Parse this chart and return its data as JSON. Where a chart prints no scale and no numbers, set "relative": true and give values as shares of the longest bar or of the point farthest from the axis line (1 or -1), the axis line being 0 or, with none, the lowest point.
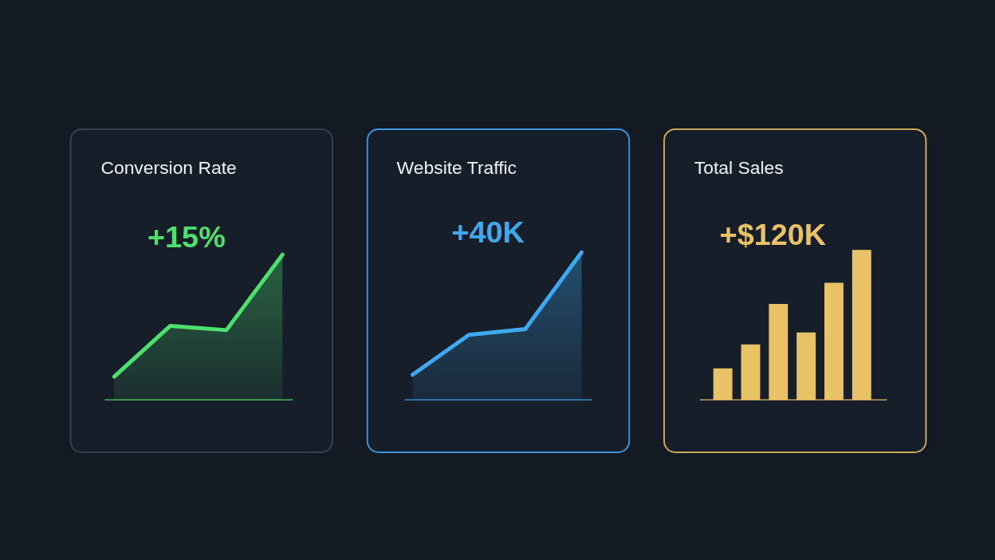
{
  "chart_data": [
    {
      "type": "area",
      "title": "Conversion Rate",
      "annotations": [
        "+15%"
      ],
      "categories": [
        null,
        null,
        null,
        null
      ],
      "relative": true,
      "series": [
        {
          "color": "#4ee06f",
          "values": [
            0.16,
            0.51,
            0.48,
            1
          ]
        }
      ]
    },
    {
      "type": "area",
      "title": "Website Traffic",
      "annotations": [
        "+40K"
      ],
      "categories": [
        null,
        null,
        null,
        null
      ],
      "relative": true,
      "series": [
        {
          "color": "#3fa9f0",
          "values": [
            0.17,
            0.44,
            0.48,
            1
          ]
        }
      ]
    },
    {
      "type": "bar",
      "title": "Total Sales",
      "annotations": [
        "+$120K"
      ],
      "categories": [
        null,
        null,
        null,
        null,
        null,
        null
      ],
      "relative": true,
      "series": [
        {
          "color": "#e8c265",
          "values": [
            0.21,
            0.37,
            0.64,
            0.45,
            0.78,
            1
          ]
        }
      ]
    }
  ]
}
